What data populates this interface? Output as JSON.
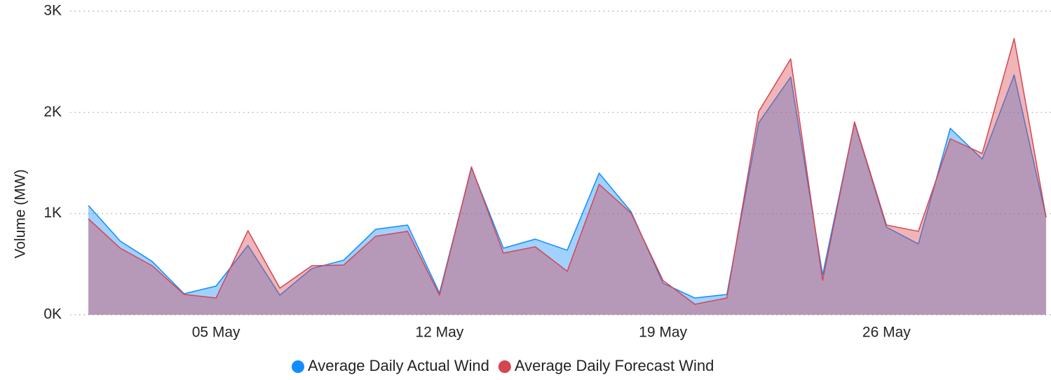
{
  "chart_data": {
    "type": "area",
    "y_label": "Volume (MW)",
    "categories": [
      null,
      null,
      null,
      null,
      "05 May",
      null,
      null,
      null,
      null,
      null,
      null,
      "12 May",
      null,
      null,
      null,
      null,
      null,
      null,
      "19 May",
      null,
      null,
      null,
      null,
      null,
      null,
      "26 May",
      null,
      null,
      null,
      null,
      null
    ],
    "series": [
      {
        "name": "Average Daily Actual Wind",
        "color": "#118dff",
        "values": [
          1081,
          728,
          527,
          208,
          284,
          686,
          194,
          457,
          540,
          845,
          887,
          215,
          1455,
          658,
          748,
          638,
          1400,
          1019,
          312,
          166,
          201,
          1899,
          2349,
          395,
          1899,
          866,
          700,
          1843,
          1538,
          2370,
          963
        ]
      },
      {
        "name": "Average Daily Forecast Wind",
        "color": "#d64550",
        "values": [
          949,
          658,
          485,
          201,
          166,
          832,
          263,
          485,
          492,
          776,
          825,
          194,
          1462,
          610,
          672,
          430,
          1289,
          1005,
          340,
          104,
          166,
          2010,
          2529,
          340,
          1906,
          887,
          825,
          1739,
          1594,
          2730,
          963
        ]
      }
    ],
    "ylim": [
      0,
      3000
    ],
    "yticks": [
      {
        "value": 0,
        "label": "0K"
      },
      {
        "value": 1000,
        "label": "1K"
      },
      {
        "value": 2000,
        "label": "2K"
      },
      {
        "value": 3000,
        "label": "3K"
      }
    ],
    "grid": true
  }
}
